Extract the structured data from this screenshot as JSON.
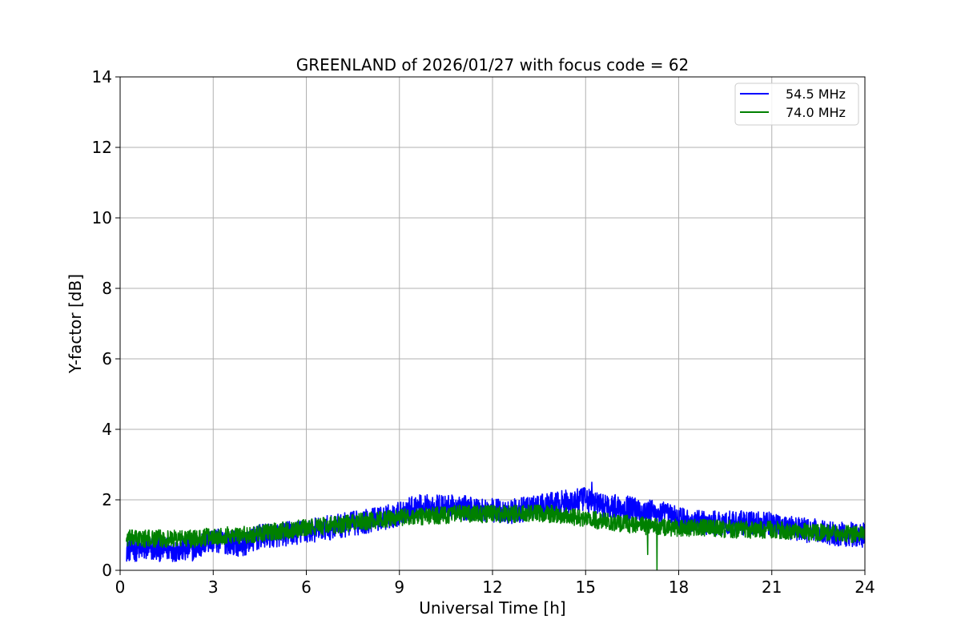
{
  "chart_data": {
    "type": "line",
    "title": "GREENLAND of 2026/01/27 with focus code = 62",
    "xlabel": "Universal Time [h]",
    "ylabel": "Y-factor [dB]",
    "xlim": [
      0,
      24
    ],
    "ylim": [
      0,
      14
    ],
    "xticks": [
      0,
      3,
      6,
      9,
      12,
      15,
      18,
      21,
      24
    ],
    "yticks": [
      0,
      2,
      4,
      6,
      8,
      10,
      12,
      14
    ],
    "grid": true,
    "legend_position": "top-right",
    "series": [
      {
        "name": "54.5 MHz",
        "color": "#0000ff",
        "noise_band_db": 0.35,
        "x": [
          0.2,
          0.6,
          1.0,
          1.5,
          2.0,
          2.5,
          2.8,
          3.5,
          4.0,
          4.5,
          5.0,
          6.0,
          7.0,
          8.0,
          8.8,
          9.5,
          10.5,
          11.5,
          12.5,
          13.5,
          14.5,
          15.0,
          15.5,
          16.5,
          17.5,
          18.1,
          18.4,
          19.0,
          20.0,
          21.0,
          22.0,
          23.0,
          24.0
        ],
        "values": [
          0.6,
          0.6,
          0.6,
          0.6,
          0.6,
          0.62,
          0.85,
          0.8,
          0.75,
          0.95,
          1.0,
          1.1,
          1.25,
          1.4,
          1.55,
          1.8,
          1.8,
          1.75,
          1.65,
          1.8,
          1.95,
          2.0,
          1.85,
          1.75,
          1.6,
          1.45,
          1.35,
          1.35,
          1.35,
          1.3,
          1.15,
          1.05,
          1.0
        ],
        "spikes": [
          {
            "x": 15.2,
            "y": 2.5
          },
          {
            "x": 2.1,
            "y": 0.3
          },
          {
            "x": 3.8,
            "y": 0.4
          }
        ]
      },
      {
        "name": "74.0 MHz",
        "color": "#008000",
        "noise_band_db": 0.25,
        "x": [
          0.2,
          0.6,
          1.0,
          1.5,
          2.0,
          2.5,
          2.8,
          3.5,
          4.0,
          4.5,
          5.0,
          6.0,
          7.0,
          8.0,
          9.0,
          10.0,
          11.0,
          12.0,
          13.0,
          14.0,
          15.0,
          16.0,
          17.0,
          18.1,
          18.4,
          19.0,
          20.0,
          21.0,
          22.0,
          23.0,
          24.0
        ],
        "values": [
          0.9,
          0.9,
          0.9,
          0.9,
          0.9,
          0.9,
          0.95,
          1.0,
          1.0,
          1.05,
          1.1,
          1.2,
          1.3,
          1.4,
          1.5,
          1.55,
          1.6,
          1.6,
          1.6,
          1.6,
          1.45,
          1.35,
          1.25,
          1.2,
          1.2,
          1.2,
          1.15,
          1.15,
          1.1,
          1.05,
          1.0
        ],
        "spikes": [
          {
            "x": 17.3,
            "y": 0.0
          },
          {
            "x": 17.0,
            "y": 0.45
          }
        ]
      }
    ]
  }
}
